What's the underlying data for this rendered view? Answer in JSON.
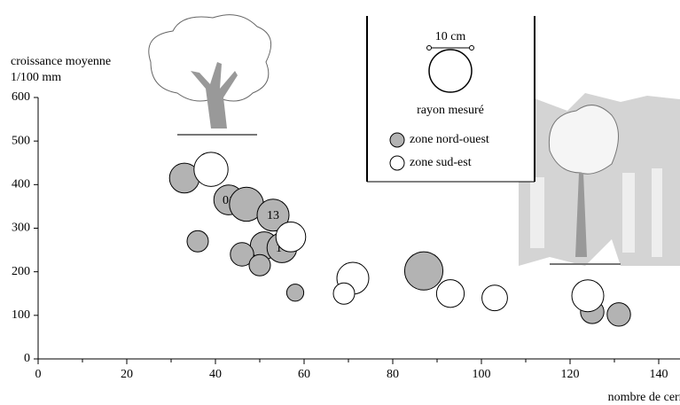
{
  "chart_data": {
    "type": "bubble",
    "y_label": [
      "croissance moyenne",
      "1/100 mm"
    ],
    "x_label": "nombre de cernes",
    "xlim": [
      0,
      145
    ],
    "ylim": [
      0,
      600
    ],
    "xticks": [
      0,
      20,
      40,
      60,
      80,
      100,
      120,
      140
    ],
    "xminorticks": [
      10,
      30,
      50,
      70,
      90,
      110,
      130
    ],
    "yticks": [
      0,
      100,
      200,
      300,
      400,
      500,
      600
    ],
    "size_reference": {
      "value": 10,
      "label": "10 cm",
      "caption": "rayon mesuré"
    },
    "series": [
      {
        "name": "zone nord-ouest",
        "color": "#b3b3b3",
        "x": [
          33,
          43,
          47,
          53,
          51,
          55,
          36,
          46,
          50,
          58,
          87,
          125,
          131
        ],
        "y": [
          415,
          365,
          355,
          330,
          260,
          255,
          270,
          240,
          215,
          152,
          202,
          108,
          102
        ],
        "size": [
          7,
          7,
          8,
          7.5,
          6.5,
          7,
          5,
          5.5,
          5,
          4,
          9,
          5.5,
          5.5
        ],
        "labels": [
          null,
          "01",
          null,
          "13",
          null,
          "14",
          null,
          null,
          null,
          null,
          null,
          null,
          null
        ]
      },
      {
        "name": "zone sud-est",
        "color": "#ffffff",
        "x": [
          39,
          57,
          71,
          69,
          93,
          103,
          124
        ],
        "y": [
          435,
          280,
          185,
          150,
          150,
          140,
          145
        ],
        "size": [
          8,
          7,
          7.5,
          5,
          6.5,
          6,
          7.5
        ]
      }
    ]
  }
}
